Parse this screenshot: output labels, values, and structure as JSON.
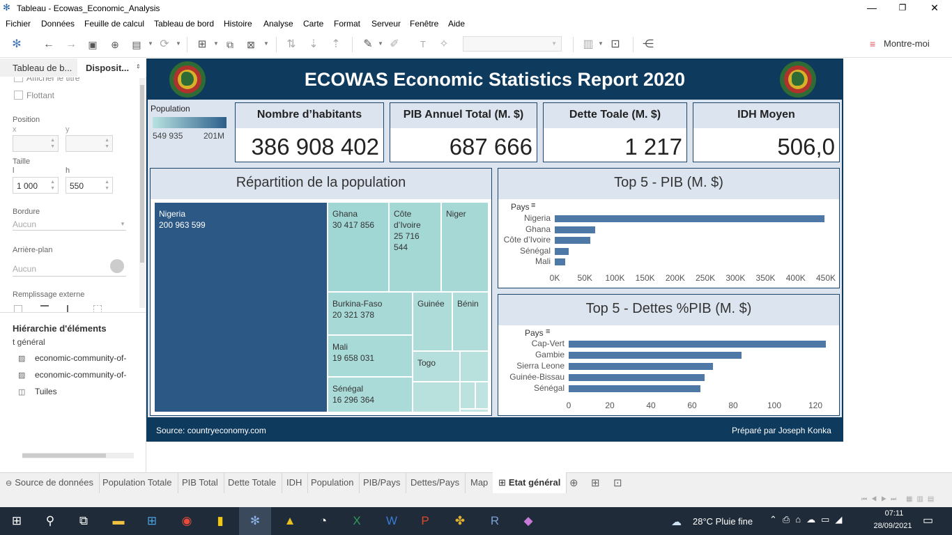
{
  "window": {
    "title": "Tableau - Ecowas_Economic_Analysis"
  },
  "menu": [
    "Fichier",
    "Données",
    "Feuille de calcul",
    "Tableau de bord",
    "Histoire",
    "Analyse",
    "Carte",
    "Format",
    "Serveur",
    "Fenêtre",
    "Aide"
  ],
  "toolbar": {
    "show_me": "Montre-moi"
  },
  "left_panel": {
    "tabs": [
      "Tableau de b...",
      "Disposit..."
    ],
    "show_title": "Afficher le titre",
    "floating": "Flottant",
    "position_label": "Position",
    "x_label": "x",
    "y_label": "y",
    "size_label": "Taille",
    "w_label": "l",
    "h_label": "h",
    "w_value": "1 000",
    "h_value": "550",
    "border_label": "Bordure",
    "border_value": "Aucun",
    "background_label": "Arrière-plan",
    "background_value": "Aucun",
    "outer_padding_label": "Remplissage externe",
    "hierarchy_title": "Hiérarchie d'éléments",
    "hierarchy_sub": "t général",
    "hierarchy_items": [
      "economic-community-of-",
      "economic-community-of-",
      "Tuiles"
    ]
  },
  "dashboard": {
    "title": "ECOWAS Economic Statistics Report 2020",
    "legend": {
      "title": "Population",
      "min": "549 935",
      "max": "201M"
    },
    "kpis": [
      {
        "label": "Nombre d’habitants",
        "value": "386 908 402"
      },
      {
        "label": "PIB Annuel Total (M. $)",
        "value": "687 666"
      },
      {
        "label": "Dette Toale (M. $)",
        "value": "1 217"
      },
      {
        "label": "IDH Moyen",
        "value": "506,0"
      }
    ],
    "treemap": {
      "title": "Répartition de la population",
      "cells": [
        {
          "name": "Nigeria",
          "value": "200 963 599"
        },
        {
          "name": "Ghana",
          "value": "30 417 856"
        },
        {
          "name": "Côte d’Ivoire",
          "value": "25 716 544"
        },
        {
          "name": "Niger",
          "value": ""
        },
        {
          "name": "Burkina-Faso",
          "value": "20 321 378"
        },
        {
          "name": "Guinée",
          "value": ""
        },
        {
          "name": "Bénin",
          "value": ""
        },
        {
          "name": "Mali",
          "value": "19 658 031"
        },
        {
          "name": "Togo",
          "value": ""
        },
        {
          "name": "Sénégal",
          "value": "16 296 364"
        }
      ]
    },
    "footer": {
      "source": "Source: countryeconomy.com",
      "prepared": "Préparé par Joseph Konka"
    }
  },
  "chart_data": [
    {
      "type": "bar",
      "title": "Top 5 - PIB (M. $)",
      "ylabel": "Pays",
      "categories": [
        "Nigeria",
        "Ghana",
        "Côte d’Ivoire",
        "Sénégal",
        "Mali"
      ],
      "values": [
        448120,
        66984,
        58539,
        23578,
        17510
      ],
      "xlim": [
        0,
        450000
      ],
      "ticks": [
        "0K",
        "50K",
        "100K",
        "150K",
        "200K",
        "250K",
        "300K",
        "350K",
        "400K",
        "450K"
      ]
    },
    {
      "type": "bar",
      "title": "Top 5 - Dettes %PIB (M. $)",
      "ylabel": "Pays",
      "categories": [
        "Cap-Vert",
        "Gambie",
        "Sierra Leone",
        "Guinée-Bissau",
        "Sénégal"
      ],
      "values": [
        125,
        84,
        70,
        66,
        64
      ],
      "xlim": [
        0,
        125
      ],
      "ticks": [
        "0",
        "20",
        "40",
        "60",
        "80",
        "100",
        "120"
      ]
    }
  ],
  "sheet_tabs": [
    "Source de données",
    "Population Totale",
    "PIB Total",
    "Dette Totale",
    "IDH",
    "Population",
    "PIB/Pays",
    "Dettes/Pays",
    "Map",
    "Etat général"
  ],
  "taskbar": {
    "weather": "28°C  Pluie fine",
    "time": "07:11",
    "date": "28/09/2021"
  },
  "colors": {
    "bar": "#4e79a7",
    "header": "#0e3a5e",
    "treemap_dark": "#2c5885",
    "treemap_light": "#a0d6d4"
  }
}
